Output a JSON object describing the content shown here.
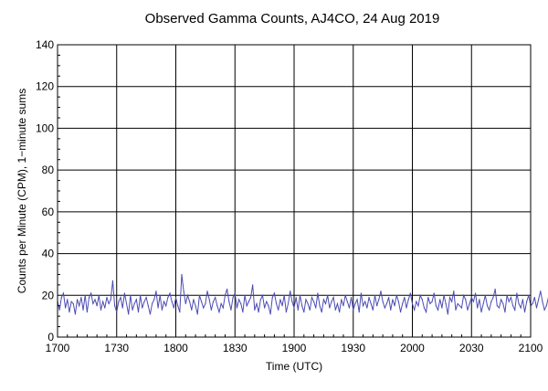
{
  "chart_data": {
    "type": "line",
    "title": "Observed Gamma Counts, AJ4CO, 24 Aug 2019",
    "xlabel": "Time (UTC)",
    "ylabel": "Counts per Minute (CPM), 1−minute sums",
    "xlim": [
      "17:00",
      "21:00"
    ],
    "ylim": [
      0,
      140
    ],
    "grid": true,
    "x_ticks": [
      "1700",
      "1730",
      "1800",
      "1830",
      "1900",
      "1930",
      "2000",
      "2030",
      "2100"
    ],
    "y_ticks": [
      "0",
      "20",
      "40",
      "60",
      "80",
      "100",
      "120",
      "140"
    ],
    "colors": {
      "series": "#4b4bb4",
      "grid": "#000000",
      "background": "#ffffff"
    },
    "series": [
      {
        "x_start": "17:00",
        "x_step_minutes": 1,
        "values": [
          17,
          13,
          19,
          21,
          14,
          18,
          12,
          17,
          16,
          11,
          18,
          15,
          19,
          13,
          20,
          12,
          19,
          21,
          16,
          18,
          15,
          20,
          13,
          17,
          14,
          19,
          16,
          18,
          27,
          15,
          12,
          17,
          19,
          14,
          21,
          16,
          11,
          20,
          13,
          16,
          18,
          12,
          20,
          14,
          17,
          19,
          15,
          11,
          16,
          18,
          22,
          14,
          20,
          13,
          17,
          15,
          19,
          21,
          17,
          14,
          19,
          15,
          12,
          30,
          22,
          16,
          20,
          17,
          13,
          18,
          15,
          11,
          20,
          17,
          14,
          16,
          22,
          18,
          13,
          17,
          19,
          15,
          12,
          16,
          14,
          20,
          23,
          17,
          13,
          19,
          21,
          14,
          18,
          16,
          12,
          20,
          15,
          17,
          19,
          25,
          13,
          16,
          12,
          18,
          20,
          14,
          17,
          15,
          11,
          19,
          21,
          16,
          13,
          18,
          15,
          20,
          12,
          16,
          22,
          17,
          14,
          19,
          13,
          20,
          15,
          12,
          18,
          16,
          13,
          19,
          17,
          14,
          21,
          15,
          12,
          18,
          16,
          20,
          14,
          17,
          19,
          13,
          16,
          12,
          18,
          15,
          20,
          17,
          14,
          19,
          13,
          16,
          18,
          12,
          21,
          15,
          17,
          14,
          19,
          16,
          13,
          20,
          15,
          18,
          22,
          17,
          14,
          16,
          19,
          13,
          18,
          15,
          20,
          17,
          12,
          16,
          19,
          14,
          18,
          21,
          16,
          13,
          17,
          15,
          20,
          18,
          14,
          12,
          19,
          16,
          17,
          21,
          15,
          13,
          18,
          14,
          20,
          16,
          11,
          19,
          17,
          22,
          13,
          16,
          15,
          14,
          20,
          18,
          13,
          16,
          19,
          17,
          21,
          14,
          18,
          12,
          16,
          20,
          15,
          13,
          17,
          19,
          23,
          15,
          14,
          18,
          16,
          12,
          20,
          17,
          19,
          15,
          13,
          21,
          16,
          14,
          18,
          12,
          17,
          20,
          15,
          16,
          19,
          14,
          18,
          22,
          17,
          13,
          15,
          19,
          16,
          11,
          20,
          17,
          14,
          18,
          15,
          21,
          13,
          16,
          17,
          19,
          15,
          12,
          18,
          14
        ]
      }
    ]
  }
}
